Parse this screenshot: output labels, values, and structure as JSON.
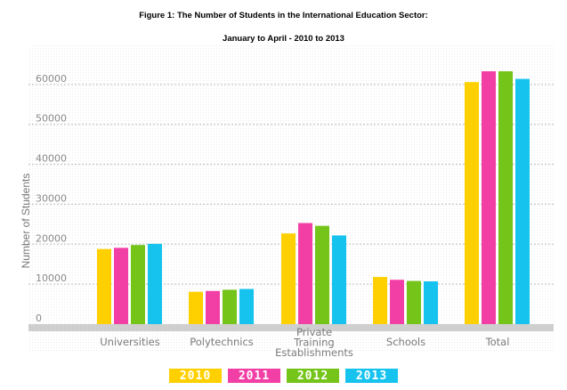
{
  "title_line1": "Figure 1: The Number of Students in the International Education Sector:",
  "title_line2": "January to April - 2010 to 2013",
  "chart_data": {
    "type": "bar",
    "title": "Figure 1: The Number of Students in the International Education Sector: January to April - 2010 to 2013",
    "xlabel": "",
    "ylabel": "Number of Students",
    "ylim": [
      0,
      70000
    ],
    "yticks": [
      0,
      10000,
      20000,
      30000,
      40000,
      50000,
      60000
    ],
    "categories": [
      "Universities",
      "Polytechnics",
      "Private Training Establishments",
      "Schools",
      "Total"
    ],
    "category_labels": [
      [
        "Universities"
      ],
      [
        "Polytechnics"
      ],
      [
        "Private",
        "Training",
        "Establishments"
      ],
      [
        "Schools"
      ],
      [
        "Total"
      ]
    ],
    "series": [
      {
        "name": "2010",
        "color": "#FFD000",
        "values": [
          18800,
          8100,
          22700,
          11800,
          60600
        ]
      },
      {
        "name": "2011",
        "color": "#F23FA6",
        "values": [
          19100,
          8300,
          25300,
          11100,
          63300
        ]
      },
      {
        "name": "2012",
        "color": "#74C41A",
        "values": [
          19800,
          8600,
          24600,
          10800,
          63300
        ]
      },
      {
        "name": "2013",
        "color": "#16C3EE",
        "values": [
          20100,
          8800,
          22200,
          10700,
          61400
        ]
      }
    ],
    "legend": "bottom-center"
  }
}
